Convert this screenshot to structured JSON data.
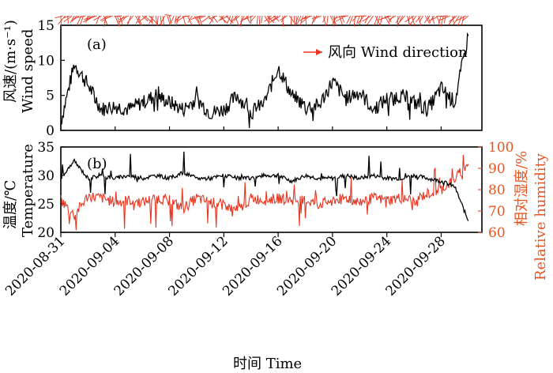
{
  "chart_data": [
    {
      "type": "line",
      "panel_label": "(a)",
      "ylabel_cn": "风速/(m·s⁻¹)",
      "ylabel_en": "Wind speed",
      "ylim": [
        0,
        15
      ],
      "yticks": [
        0,
        5,
        10,
        15
      ],
      "legend": {
        "text": "风向 Wind direction",
        "placement": "top-right"
      },
      "series": [
        {
          "color": "#000000",
          "x": [
            "2020-08-31",
            "2020-09-01",
            "2020-09-02",
            "2020-09-03",
            "2020-09-04",
            "2020-09-05",
            "2020-09-06",
            "2020-09-07",
            "2020-09-08",
            "2020-09-09",
            "2020-09-10",
            "2020-09-11",
            "2020-09-12",
            "2020-09-13",
            "2020-09-14",
            "2020-09-15",
            "2020-09-16",
            "2020-09-17",
            "2020-09-18",
            "2020-09-19",
            "2020-09-20",
            "2020-09-21",
            "2020-09-22",
            "2020-09-23",
            "2020-09-24",
            "2020-09-25",
            "2020-09-26",
            "2020-09-27",
            "2020-09-28",
            "2020-09-29",
            "2020-09-30"
          ],
          "values": [
            1.2,
            9.5,
            6.5,
            3,
            3.5,
            3,
            4,
            5,
            4,
            3,
            4.5,
            2.5,
            3,
            5,
            2.5,
            4,
            9,
            5,
            3.5,
            3.5,
            7,
            4.5,
            5.5,
            3,
            4.5,
            5,
            4,
            3,
            6,
            4,
            13.5
          ]
        },
        {
          "name": "风向 Wind direction",
          "color": "#E8341E",
          "x": [
            "2020-08-31",
            "2020-09-02",
            "2020-09-04",
            "2020-09-06",
            "2020-09-08",
            "2020-09-10",
            "2020-09-12",
            "2020-09-14",
            "2020-09-16",
            "2020-09-18",
            "2020-09-20",
            "2020-09-22",
            "2020-09-24",
            "2020-09-26",
            "2020-09-28",
            "2020-09-30"
          ],
          "values": [
            225,
            200,
            215,
            180,
            225,
            200,
            190,
            210,
            180,
            220,
            200,
            215,
            190,
            210,
            200,
            230
          ]
        }
      ]
    },
    {
      "type": "line",
      "panel_label": "(b)",
      "ylabel_cn": "温度/℃",
      "ylabel_en": "Temperature",
      "ylim": [
        20,
        35
      ],
      "yticks": [
        20,
        25,
        30,
        35
      ],
      "y2label_cn": "相对湿度/%",
      "y2label_en": "Relative humidity",
      "y2lim": [
        60,
        100
      ],
      "y2ticks": [
        60,
        70,
        80,
        90,
        100
      ],
      "xlabel": "时间 Time",
      "xticks": [
        "2020-08-31",
        "2020-09-04",
        "2020-09-08",
        "2020-09-12",
        "2020-09-16",
        "2020-09-20",
        "2020-09-24",
        "2020-09-28"
      ],
      "series": [
        {
          "color": "#000000",
          "axis": "left",
          "x": [
            "2020-08-31",
            "2020-09-01",
            "2020-09-02",
            "2020-09-03",
            "2020-09-04",
            "2020-09-05",
            "2020-09-06",
            "2020-09-07",
            "2020-09-08",
            "2020-09-09",
            "2020-09-10",
            "2020-09-11",
            "2020-09-12",
            "2020-09-13",
            "2020-09-14",
            "2020-09-15",
            "2020-09-16",
            "2020-09-17",
            "2020-09-18",
            "2020-09-19",
            "2020-09-20",
            "2020-09-21",
            "2020-09-22",
            "2020-09-23",
            "2020-09-24",
            "2020-09-25",
            "2020-09-26",
            "2020-09-27",
            "2020-09-28",
            "2020-09-29",
            "2020-09-30"
          ],
          "values": [
            29.5,
            32.5,
            29.5,
            30,
            29.5,
            30,
            29.5,
            30,
            29.5,
            30.5,
            29.5,
            29.5,
            30,
            29.5,
            29.5,
            30,
            30,
            29,
            30,
            29.5,
            29.5,
            30,
            29.5,
            30,
            29.5,
            29.5,
            30,
            29.5,
            29,
            28,
            22
          ]
        },
        {
          "color": "#E8341E",
          "axis": "right",
          "x": [
            "2020-08-31",
            "2020-09-01",
            "2020-09-02",
            "2020-09-03",
            "2020-09-04",
            "2020-09-05",
            "2020-09-06",
            "2020-09-07",
            "2020-09-08",
            "2020-09-09",
            "2020-09-10",
            "2020-09-11",
            "2020-09-12",
            "2020-09-13",
            "2020-09-14",
            "2020-09-15",
            "2020-09-16",
            "2020-09-17",
            "2020-09-18",
            "2020-09-19",
            "2020-09-20",
            "2020-09-21",
            "2020-09-22",
            "2020-09-23",
            "2020-09-24",
            "2020-09-25",
            "2020-09-26",
            "2020-09-27",
            "2020-09-28",
            "2020-09-29",
            "2020-09-30"
          ],
          "values": [
            75,
            68,
            77,
            76,
            74,
            75,
            74,
            76,
            75,
            71,
            76,
            74,
            73,
            70,
            76,
            75,
            76,
            75,
            75,
            73,
            75,
            76,
            74,
            76,
            75,
            76,
            75,
            78,
            80,
            85,
            92
          ]
        }
      ]
    }
  ]
}
